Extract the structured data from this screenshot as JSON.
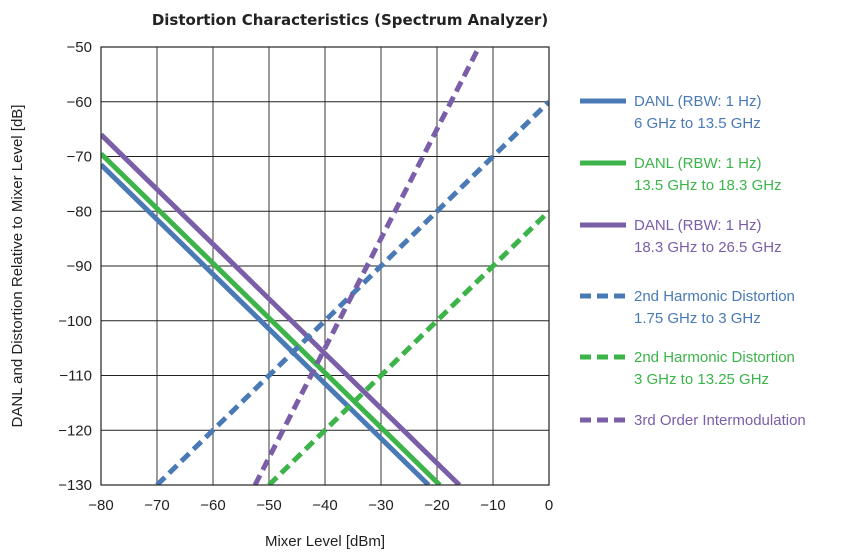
{
  "chart_data": {
    "type": "line",
    "title": "Distortion Characteristics (Spectrum Analyzer)",
    "xlabel": "Mixer Level [dBm]",
    "ylabel": "DANL and Distortion Relative to Mixer Level [dB]",
    "xlim": [
      -80,
      0
    ],
    "ylim": [
      -130,
      -50
    ],
    "x_ticks": [
      -80,
      -70,
      -60,
      -50,
      -40,
      -30,
      -20,
      -10,
      0
    ],
    "y_ticks": [
      -50,
      -60,
      -70,
      -80,
      -90,
      -100,
      -110,
      -120,
      -130
    ],
    "x_tick_labels": [
      "−80",
      "−70",
      "−60",
      "−50",
      "−40",
      "−30",
      "−20",
      "−10",
      "0"
    ],
    "y_tick_labels": [
      "−50",
      "−60",
      "−70",
      "−80",
      "−90",
      "−100",
      "−110",
      "−120",
      "−130"
    ],
    "grid": true,
    "legend_position": "right",
    "series": [
      {
        "name": "DANL (RBW: 1 Hz)",
        "name_line2": "6 GHz to 13.5 GHz",
        "color": "#4a7ab5",
        "style": "solid",
        "points": [
          [
            -80,
            -71.5
          ],
          [
            -21.5,
            -130
          ]
        ]
      },
      {
        "name": "DANL (RBW: 1 Hz)",
        "name_line2": "13.5 GHz to 18.3 GHz",
        "color": "#3cb44a",
        "style": "solid",
        "points": [
          [
            -80,
            -69.5
          ],
          [
            -19.5,
            -130
          ]
        ]
      },
      {
        "name": "DANL (RBW: 1 Hz)",
        "name_line2": "18.3 GHz to 26.5 GHz",
        "color": "#7b5ea8",
        "style": "solid",
        "points": [
          [
            -80,
            -66
          ],
          [
            -16,
            -130
          ]
        ]
      },
      {
        "name": "2nd Harmonic Distortion",
        "name_line2": "1.75 GHz to 3 GHz",
        "color": "#4a7ab5",
        "style": "dashed",
        "points": [
          [
            -70,
            -130
          ],
          [
            0,
            -60
          ]
        ]
      },
      {
        "name": "2nd Harmonic Distortion",
        "name_line2": "3 GHz to 13.25 GHz",
        "color": "#3cb44a",
        "style": "dashed",
        "points": [
          [
            -50,
            -130
          ],
          [
            0,
            -80
          ]
        ]
      },
      {
        "name": "3rd Order Intermodulation",
        "name_line2": "",
        "color": "#7b5ea8",
        "style": "dashed",
        "points": [
          [
            -52.5,
            -130
          ],
          [
            -12,
            -49
          ]
        ]
      }
    ]
  }
}
